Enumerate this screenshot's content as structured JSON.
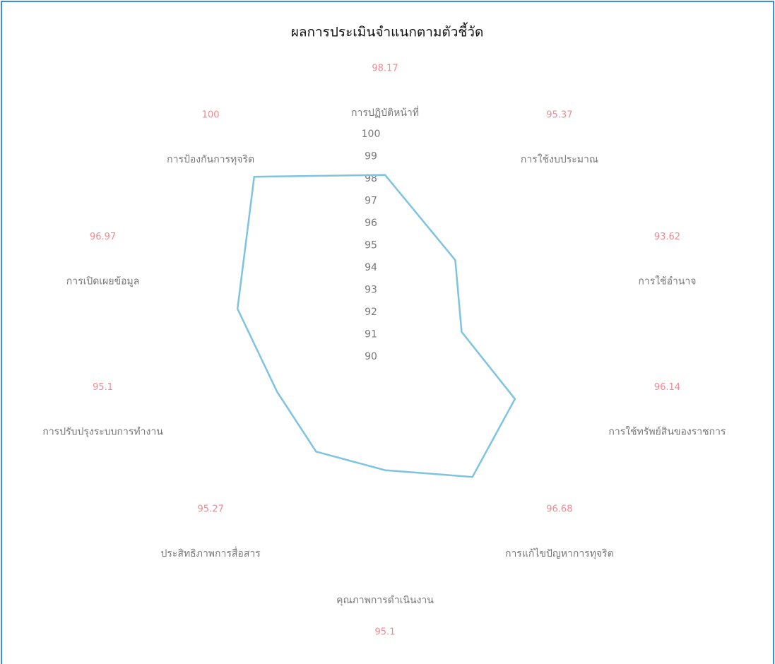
{
  "chart_data": {
    "type": "radar",
    "title": "ผลการประเมินจำแนกตามตัวชี้วัด",
    "categories": [
      "การปฏิบัติหน้าที่",
      "การใช้งบประมาณ",
      "การใช้อำนาจ",
      "การใช้ทรัพย์สินของราชการ",
      "การแก้ไขปัญหาการทุจริต",
      "คุณภาพการดำเนินงาน",
      "ประสิทธิภาพการสื่อสาร",
      "การปรับปรุงระบบการทำงาน",
      "การเปิดเผยข้อมูล",
      "การป้องกันการทุจริต"
    ],
    "values": [
      98.17,
      95.37,
      93.62,
      96.14,
      96.68,
      95.1,
      95.27,
      95.1,
      96.97,
      100
    ],
    "color": "#7ec3e0",
    "ylim": [
      90,
      100
    ],
    "yticks": [
      90,
      91,
      92,
      93,
      94,
      95,
      96,
      97,
      98,
      99,
      100
    ],
    "grid": false
  }
}
